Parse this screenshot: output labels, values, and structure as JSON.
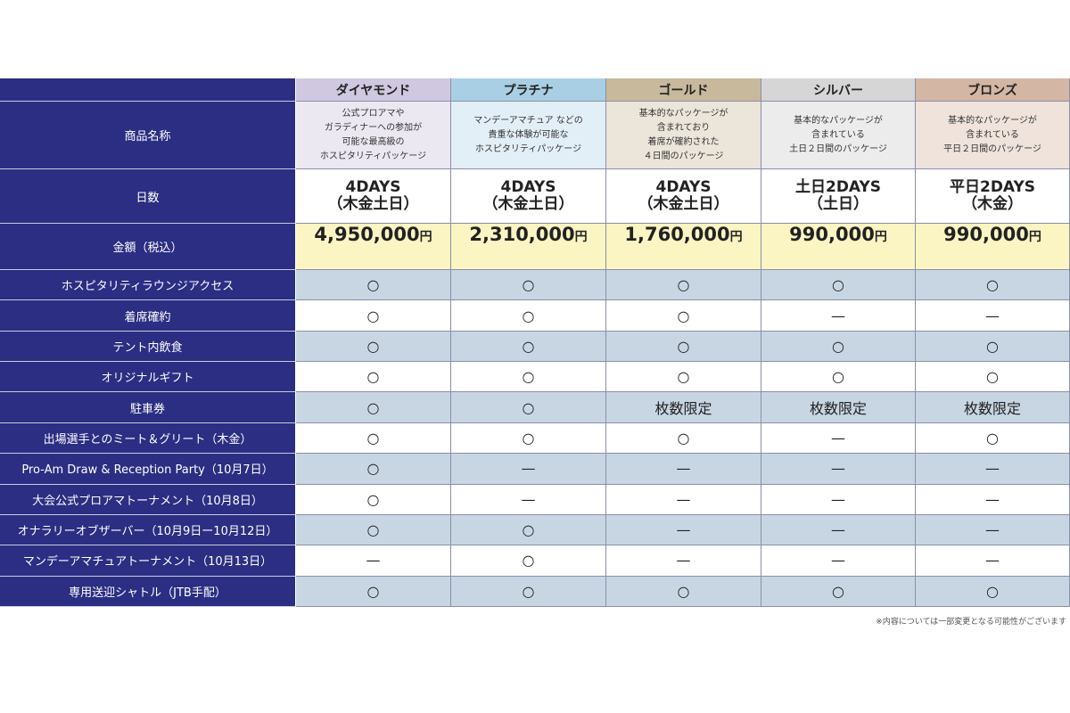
{
  "table": {
    "row_labels": {
      "name": "商品名称",
      "days": "日数",
      "price": "金額（税込）"
    },
    "columns": [
      {
        "name": "ダイヤモンド",
        "description": [
          "公式プロアマや",
          "ガラディナーへの参加が",
          "可能な最高級の",
          "ホスピタリティパッケージ"
        ],
        "days": "4DAYS",
        "days_detail": "（木金土日）",
        "price": "4,950,000",
        "price_unit": "円"
      },
      {
        "name": "プラチナ",
        "description": [
          "マンデーアマチュア などの",
          "貴重な体験が可能な",
          "ホスピタリティパッケージ"
        ],
        "days": "4DAYS",
        "days_detail": "（木金土日）",
        "price": "2,310,000",
        "price_unit": "円"
      },
      {
        "name": "ゴールド",
        "description": [
          "基本的なパッケージが",
          "含まれており",
          "着席が確約された",
          "４日間のパッケージ"
        ],
        "days": "4DAYS",
        "days_detail": "（木金土日）",
        "price": "1,760,000",
        "price_unit": "円"
      },
      {
        "name": "シルバー",
        "description": [
          "基本的なパッケージが",
          "含まれている",
          "土日２日間のパッケージ"
        ],
        "days": "土日2DAYS",
        "days_detail": "（土日）",
        "price": "990,000",
        "price_unit": "円"
      },
      {
        "name": "ブロンズ",
        "description": [
          "基本的なパッケージが",
          "含まれている",
          "平日２日間のパッケージ"
        ],
        "days": "平日2DAYS",
        "days_detail": "（木金）",
        "price": "990,000",
        "price_unit": "円"
      }
    ],
    "features": [
      {
        "label": "ホスピタリティラウンジアクセス",
        "cells": [
          "○",
          "○",
          "○",
          "○",
          "○"
        ]
      },
      {
        "label": "着席確約",
        "cells": [
          "○",
          "○",
          "○",
          "—",
          "—"
        ]
      },
      {
        "label": "テント内飲食",
        "cells": [
          "○",
          "○",
          "○",
          "○",
          "○"
        ]
      },
      {
        "label": "オリジナルギフト",
        "cells": [
          "○",
          "○",
          "○",
          "○",
          "○"
        ]
      },
      {
        "label": "駐車券",
        "cells": [
          "○",
          "○",
          "枚数限定",
          "枚数限定",
          "枚数限定"
        ]
      },
      {
        "label": "出場選手とのミート＆グリート（木金）",
        "cells": [
          "○",
          "○",
          "○",
          "—",
          "○"
        ]
      },
      {
        "label": "Pro-Am Draw & Reception Party（10月7日）",
        "cells": [
          "○",
          "—",
          "—",
          "—",
          "—"
        ]
      },
      {
        "label": "大会公式プロアマトーナメント（10月8日）",
        "cells": [
          "○",
          "—",
          "—",
          "—",
          "—"
        ]
      },
      {
        "label": "オナラリーオブザーバー（10月9日ー10月12日）",
        "cells": [
          "○",
          "○",
          "—",
          "—",
          "—"
        ]
      },
      {
        "label": "マンデーアマチュアトーナメント（10月13日）",
        "cells": [
          "—",
          "○",
          "—",
          "—",
          "—"
        ]
      },
      {
        "label": "専用送迎シャトル（JTB手配）",
        "cells": [
          "○",
          "○",
          "○",
          "○",
          "○"
        ]
      }
    ],
    "footnote": "※内容については一部変更となる可能性がございます"
  }
}
